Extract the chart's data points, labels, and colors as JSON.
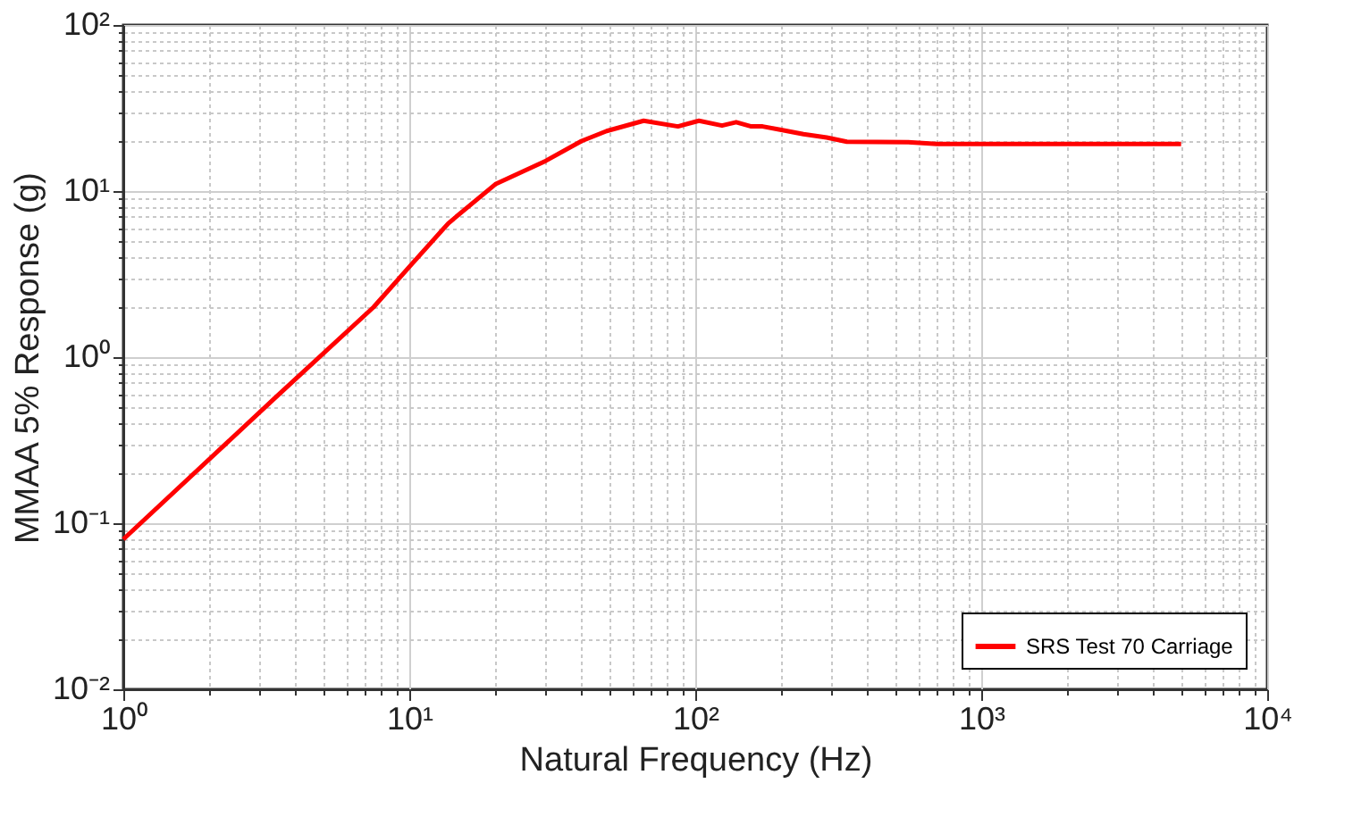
{
  "chart_data": {
    "type": "line",
    "xlabel": "Natural Frequency (Hz)",
    "ylabel": "MMAA 5% Response (g)",
    "log": "xy",
    "grid": true,
    "legend": "bottom right",
    "line_style": "solid",
    "marker": "none",
    "xlim": [
      1,
      10000
    ],
    "ylim": [
      0.01,
      100
    ],
    "xticks": [
      {
        "value": 1,
        "label": "10⁰"
      },
      {
        "value": 2,
        "label": null
      },
      {
        "value": 3,
        "label": null
      },
      {
        "value": 4,
        "label": null
      },
      {
        "value": 5,
        "label": null
      },
      {
        "value": 6,
        "label": null
      },
      {
        "value": 7,
        "label": null
      },
      {
        "value": 8,
        "label": null
      },
      {
        "value": 9,
        "label": null
      },
      {
        "value": 10,
        "label": "10¹"
      },
      {
        "value": 20,
        "label": null
      },
      {
        "value": 30,
        "label": null
      },
      {
        "value": 40,
        "label": null
      },
      {
        "value": 50,
        "label": null
      },
      {
        "value": 60,
        "label": null
      },
      {
        "value": 70,
        "label": null
      },
      {
        "value": 80,
        "label": null
      },
      {
        "value": 90,
        "label": null
      },
      {
        "value": 100,
        "label": "10²"
      },
      {
        "value": 200,
        "label": null
      },
      {
        "value": 300,
        "label": null
      },
      {
        "value": 400,
        "label": null
      },
      {
        "value": 500,
        "label": null
      },
      {
        "value": 600,
        "label": null
      },
      {
        "value": 700,
        "label": null
      },
      {
        "value": 800,
        "label": null
      },
      {
        "value": 900,
        "label": null
      },
      {
        "value": 1000,
        "label": "10³"
      },
      {
        "value": 2000,
        "label": null
      },
      {
        "value": 3000,
        "label": null
      },
      {
        "value": 4000,
        "label": null
      },
      {
        "value": 5000,
        "label": null
      },
      {
        "value": 6000,
        "label": null
      },
      {
        "value": 7000,
        "label": null
      },
      {
        "value": 8000,
        "label": null
      },
      {
        "value": 9000,
        "label": null
      },
      {
        "value": 10000,
        "label": "10⁴"
      }
    ],
    "yticks": [
      {
        "value": 0.01,
        "label": "10⁻²"
      },
      {
        "value": 0.02,
        "label": null
      },
      {
        "value": 0.03,
        "label": null
      },
      {
        "value": 0.04,
        "label": null
      },
      {
        "value": 0.05,
        "label": null
      },
      {
        "value": 0.06,
        "label": null
      },
      {
        "value": 0.07,
        "label": null
      },
      {
        "value": 0.08,
        "label": null
      },
      {
        "value": 0.09,
        "label": null
      },
      {
        "value": 0.1,
        "label": "10⁻¹"
      },
      {
        "value": 0.2,
        "label": null
      },
      {
        "value": 0.3,
        "label": null
      },
      {
        "value": 0.4,
        "label": null
      },
      {
        "value": 0.5,
        "label": null
      },
      {
        "value": 0.6,
        "label": null
      },
      {
        "value": 0.7,
        "label": null
      },
      {
        "value": 0.8,
        "label": null
      },
      {
        "value": 0.9,
        "label": null
      },
      {
        "value": 1,
        "label": "10⁰"
      },
      {
        "value": 2,
        "label": null
      },
      {
        "value": 3,
        "label": null
      },
      {
        "value": 4,
        "label": null
      },
      {
        "value": 5,
        "label": null
      },
      {
        "value": 6,
        "label": null
      },
      {
        "value": 7,
        "label": null
      },
      {
        "value": 8,
        "label": null
      },
      {
        "value": 9,
        "label": null
      },
      {
        "value": 10,
        "label": "10¹"
      },
      {
        "value": 20,
        "label": null
      },
      {
        "value": 30,
        "label": null
      },
      {
        "value": 40,
        "label": null
      },
      {
        "value": 50,
        "label": null
      },
      {
        "value": 60,
        "label": null
      },
      {
        "value": 70,
        "label": null
      },
      {
        "value": 80,
        "label": null
      },
      {
        "value": 90,
        "label": null
      },
      {
        "value": 100,
        "label": "10²"
      }
    ],
    "series": [
      {
        "name": "SRS Test 70 Carriage",
        "color": "#ff0000",
        "x": [
          1,
          3.4,
          7.5,
          10,
          13.7,
          20,
          30,
          40,
          49,
          66,
          87,
          103,
          124,
          139,
          157,
          172,
          198,
          239,
          288,
          339,
          555,
          700,
          1000,
          5000
        ],
        "values": [
          0.08,
          0.57,
          2.0,
          3.5,
          6.4,
          11,
          15.2,
          20,
          23,
          26.5,
          24.5,
          26.5,
          24.8,
          26,
          24.5,
          24.5,
          23.4,
          22,
          21,
          19.8,
          19.7,
          19.2,
          19.2,
          19.2
        ]
      }
    ]
  }
}
